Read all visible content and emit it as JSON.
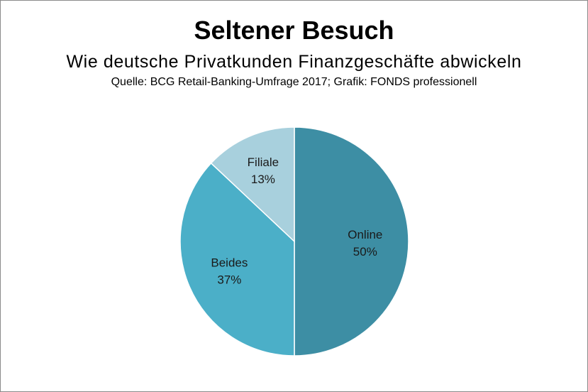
{
  "chart_data": {
    "type": "pie",
    "title": "Seltener Besuch",
    "subtitle": "Wie deutsche Privatkunden Finanzgeschäfte abwickeln",
    "source": "Quelle: BCG Retail-Banking-Umfrage 2017; Grafik: FONDS professionell",
    "slices": [
      {
        "label": "Online",
        "value": 50,
        "display": "50%",
        "color": "#3d8ea4"
      },
      {
        "label": "Beides",
        "value": 37,
        "display": "37%",
        "color": "#4bafc8"
      },
      {
        "label": "Filiale",
        "value": 13,
        "display": "13%",
        "color": "#a8d0dd"
      }
    ],
    "start": "12 o'clock",
    "direction": "clockwise",
    "legend": "none"
  }
}
